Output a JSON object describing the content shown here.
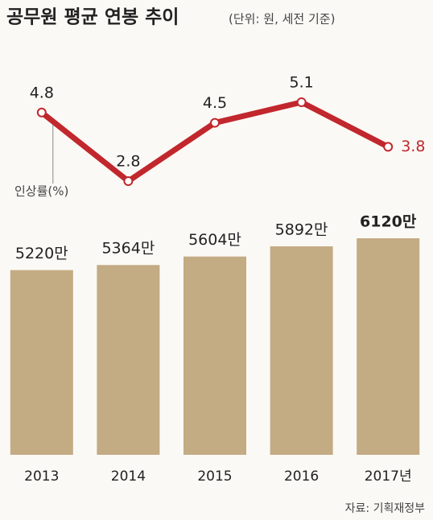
{
  "title": "공무원 평균 연봉 추이",
  "subtitle": "(단위: 원, 세전 기준)",
  "source": "자료: 기획재정부",
  "chart_data": {
    "type": "combo",
    "categories": [
      "2013",
      "2014",
      "2015",
      "2016",
      "2017년"
    ],
    "series": [
      {
        "name": "인상률(%)",
        "type": "line",
        "color": "#c1272d",
        "values": [
          4.8,
          2.8,
          4.5,
          5.1,
          3.8
        ]
      },
      {
        "type": "bar",
        "color": "#c3ab84",
        "values": [
          5220,
          5364,
          5604,
          5892,
          6120
        ],
        "value_labels": [
          "5220만",
          "5364만",
          "5604만",
          "5892만",
          "6120만"
        ]
      }
    ]
  }
}
